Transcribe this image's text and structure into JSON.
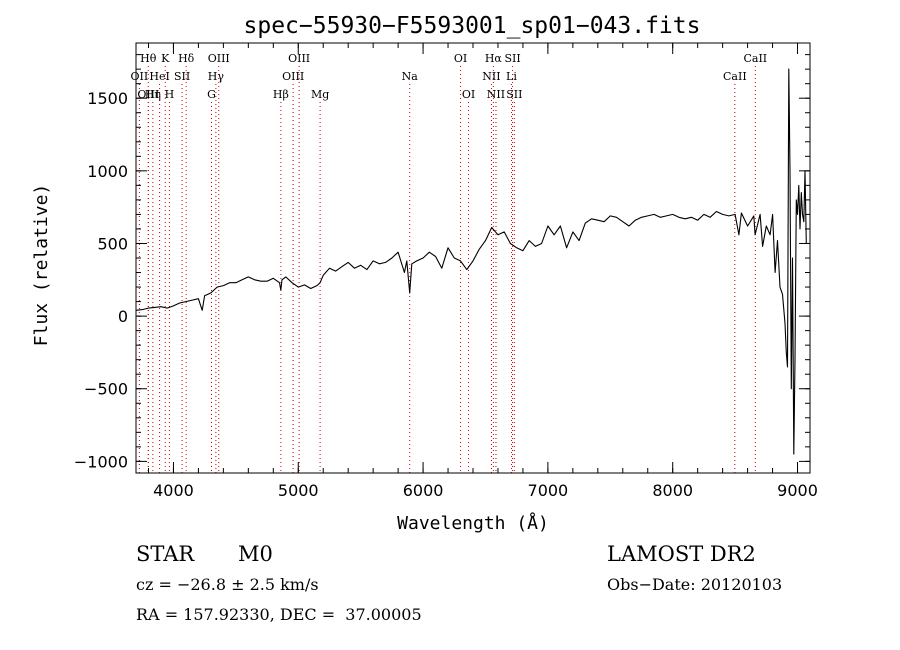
{
  "chart_data": {
    "type": "line",
    "title": "spec−55930−F5593001_sp01−043.fits",
    "xlabel": "Wavelength (Å)",
    "ylabel": "Flux (relative)",
    "xlim": [
      3700,
      9100
    ],
    "ylim": [
      -1080,
      1880
    ],
    "x_ticks": [
      4000,
      5000,
      6000,
      7000,
      8000,
      9000
    ],
    "x_tick_labels": [
      "4000",
      "5000",
      "6000",
      "7000",
      "8000",
      "9000"
    ],
    "x_minor_step": 200,
    "y_ticks": [
      -1000,
      -500,
      0,
      500,
      1000,
      1500
    ],
    "y_tick_labels": [
      "−1000",
      "−500",
      "0",
      "500",
      "1000",
      "1500"
    ],
    "y_minor_step": 100,
    "line_color": "#000000",
    "marker_line_color": "#cc0000",
    "spectral_lines": [
      {
        "label": "OII",
        "wavelength": 3727,
        "row": 2
      },
      {
        "label": "Hθ",
        "wavelength": 3798,
        "row": 1
      },
      {
        "label": "OIII",
        "wavelength": 3799,
        "row": 3
      },
      {
        "label": "Hη",
        "wavelength": 3835,
        "row": 3
      },
      {
        "label": "HeI",
        "wavelength": 3889,
        "row": 2
      },
      {
        "label": "K",
        "wavelength": 3934,
        "row": 1
      },
      {
        "label": "H",
        "wavelength": 3968,
        "row": 3
      },
      {
        "label": "SII",
        "wavelength": 4069,
        "row": 2
      },
      {
        "label": "Hδ",
        "wavelength": 4102,
        "row": 1
      },
      {
        "label": "OIII",
        "wavelength": 4363,
        "row": 1
      },
      {
        "label": "Hγ",
        "wavelength": 4340,
        "row": 2
      },
      {
        "label": "G",
        "wavelength": 4305,
        "row": 3
      },
      {
        "label": "Hβ",
        "wavelength": 4861,
        "row": 3
      },
      {
        "label": "OIII",
        "wavelength": 5007,
        "row": 1
      },
      {
        "label": "OIII",
        "wavelength": 4959,
        "row": 2
      },
      {
        "label": "Mg",
        "wavelength": 5175,
        "row": 3
      },
      {
        "label": "Na",
        "wavelength": 5893,
        "row": 2
      },
      {
        "label": "OI",
        "wavelength": 6300,
        "row": 1
      },
      {
        "label": "OI",
        "wavelength": 6364,
        "row": 3
      },
      {
        "label": "Hα",
        "wavelength": 6563,
        "row": 1
      },
      {
        "label": "NII",
        "wavelength": 6548,
        "row": 2
      },
      {
        "label": "NII",
        "wavelength": 6584,
        "row": 3
      },
      {
        "label": "SII",
        "wavelength": 6717,
        "row": 1
      },
      {
        "label": "Li",
        "wavelength": 6708,
        "row": 2
      },
      {
        "label": "SII",
        "wavelength": 6731,
        "row": 3
      },
      {
        "label": "CaII",
        "wavelength": 8498,
        "row": 2
      },
      {
        "label": "CaII",
        "wavelength": 8662,
        "row": 1
      }
    ],
    "series": [
      {
        "x": [
          3700,
          3750,
          3800,
          3850,
          3900,
          3950,
          4000,
          4050,
          4100,
          4150,
          4200,
          4230,
          4250,
          4300,
          4350,
          4400,
          4450,
          4500,
          4550,
          4600,
          4650,
          4700,
          4750,
          4800,
          4850,
          4860,
          4870,
          4900,
          4950,
          5000,
          5050,
          5100,
          5150,
          5175,
          5200,
          5250,
          5300,
          5350,
          5400,
          5450,
          5500,
          5550,
          5600,
          5650,
          5700,
          5750,
          5800,
          5850,
          5870,
          5893,
          5910,
          5950,
          6000,
          6050,
          6100,
          6150,
          6200,
          6250,
          6300,
          6350,
          6400,
          6450,
          6500,
          6550,
          6600,
          6650,
          6700,
          6750,
          6800,
          6850,
          6900,
          6950,
          7000,
          7050,
          7100,
          7150,
          7200,
          7250,
          7300,
          7350,
          7400,
          7450,
          7500,
          7550,
          7600,
          7650,
          7700,
          7750,
          7800,
          7850,
          7900,
          7950,
          8000,
          8050,
          8100,
          8150,
          8200,
          8250,
          8300,
          8350,
          8400,
          8450,
          8500,
          8530,
          8550,
          8600,
          8650,
          8660,
          8700,
          8720,
          8750,
          8780,
          8800,
          8820,
          8840,
          8860,
          8880,
          8900,
          8910,
          8920,
          8930,
          8940,
          8950,
          8960,
          8970,
          8980,
          8990,
          9000,
          9010,
          9020,
          9030,
          9040,
          9050,
          9060,
          9070
        ],
        "y": [
          40,
          45,
          55,
          60,
          65,
          55,
          70,
          90,
          100,
          110,
          120,
          40,
          140,
          160,
          200,
          210,
          230,
          230,
          250,
          270,
          250,
          240,
          240,
          260,
          230,
          180,
          250,
          270,
          230,
          200,
          215,
          190,
          210,
          230,
          280,
          330,
          310,
          340,
          370,
          330,
          350,
          320,
          380,
          360,
          370,
          400,
          440,
          300,
          380,
          160,
          360,
          380,
          400,
          440,
          410,
          330,
          470,
          400,
          380,
          320,
          380,
          460,
          520,
          610,
          560,
          580,
          500,
          470,
          450,
          520,
          480,
          500,
          620,
          560,
          620,
          470,
          580,
          520,
          640,
          670,
          660,
          650,
          690,
          680,
          650,
          620,
          660,
          680,
          690,
          700,
          680,
          690,
          700,
          680,
          670,
          680,
          660,
          700,
          680,
          720,
          700,
          690,
          700,
          560,
          710,
          620,
          690,
          560,
          700,
          480,
          620,
          560,
          700,
          300,
          520,
          200,
          150,
          -50,
          -250,
          -350,
          1700,
          1000,
          -500,
          400,
          -950,
          -300,
          800,
          700,
          900,
          600,
          850,
          700,
          650,
          1000,
          500
        ]
      }
    ]
  },
  "footer": {
    "object_type": "STAR",
    "subclass": "M0",
    "survey": "LAMOST DR2",
    "redshift_text": "cz = −26.8 ± 2.5 km/s",
    "obs_date_text": "Obs−Date: 20120103",
    "coords_text": "RA = 157.92330, DEC =  37.00005"
  }
}
